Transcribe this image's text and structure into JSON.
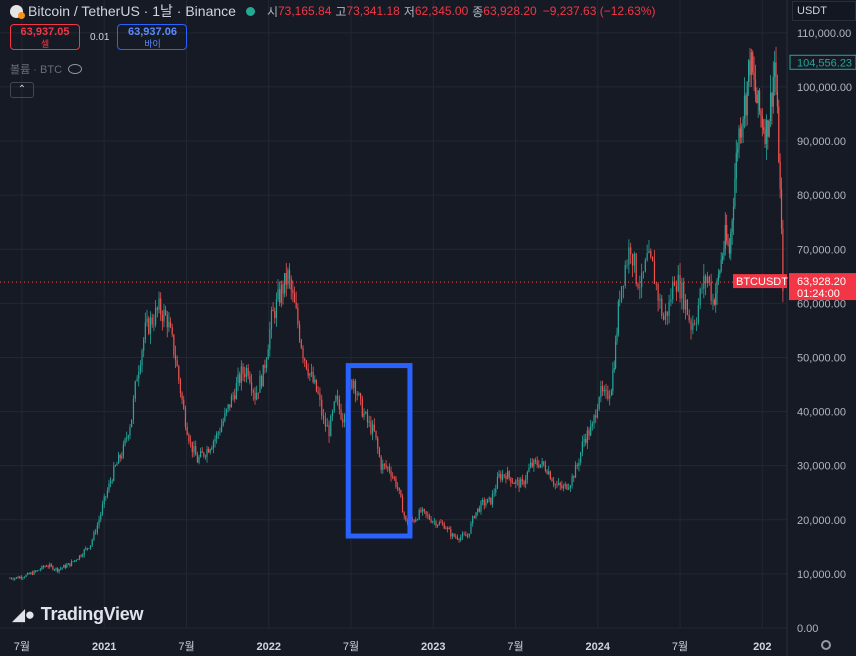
{
  "header": {
    "symbol_title": "Bitcoin / TetherUS · 1날 · Binance",
    "open_label": "시",
    "open_value": "73,165.84",
    "high_label": "고",
    "high_value": "73,341.18",
    "low_label": "저",
    "low_value": "62,345.00",
    "close_label": "종",
    "close_value": "63,928.20",
    "change_text": "−9,237.63 (−12.63%)"
  },
  "trade": {
    "sell_price": "63,937.05",
    "sell_label": "셀",
    "spread": "0.01",
    "buy_price": "63,937.06",
    "buy_label": "바이"
  },
  "volume_label": "볼륨 · BTC",
  "currency_selector": "USDT",
  "watermark": "TradingView",
  "chart_data": {
    "type": "line",
    "y_axis": {
      "ticks": [
        "0.00",
        "10,000.00",
        "20,000.00",
        "30,000.00",
        "40,000.00",
        "50,000.00",
        "60,000.00",
        "70,000.00",
        "80,000.00",
        "90,000.00",
        "100,000.00",
        "110,000.00"
      ],
      "tick_values": [
        0,
        10000,
        20000,
        30000,
        40000,
        50000,
        60000,
        70000,
        80000,
        90000,
        100000,
        110000
      ],
      "range": [
        0,
        112000
      ]
    },
    "x_axis": {
      "labels": [
        "7월",
        "2021",
        "7월",
        "2022",
        "7월",
        "2023",
        "7월",
        "2024",
        "7월",
        "202"
      ],
      "label_months": [
        6,
        12,
        18,
        24,
        30,
        36,
        42,
        48,
        54,
        60
      ],
      "range_months": [
        4.4,
        61.8
      ]
    },
    "series": {
      "x_months": [
        5,
        5.6,
        6.3,
        7,
        7.8,
        8.6,
        9.5,
        10.2,
        11,
        11.5,
        12,
        12.7,
        13.4,
        14,
        14.4,
        15,
        15.5,
        16,
        16.6,
        17.2,
        17.8,
        18.3,
        18.8,
        19.5,
        20.2,
        20.8,
        21.4,
        22,
        22.5,
        23,
        23.6,
        24.2,
        24.8,
        25.4,
        26,
        26.5,
        27,
        27.6,
        28,
        28.4,
        28.9,
        29.4,
        29.8,
        30.2,
        30.7,
        31.2,
        31.7,
        32.2,
        32.8,
        33.4,
        34,
        34.6,
        35.1,
        35.6,
        36.2,
        36.8,
        37.4,
        38,
        38.5,
        39,
        39.6,
        40.2,
        40.8,
        41.3,
        41.9,
        42.5,
        43.1,
        43.7,
        44.3,
        44.9,
        45.5,
        46,
        46.5,
        47,
        47.6,
        48.1,
        48.6,
        49,
        49.3,
        49.6,
        50,
        50.4,
        50.8,
        51.2,
        51.6,
        52,
        52.4,
        52.8,
        53.2,
        53.6,
        54,
        54.4,
        54.8,
        55.2,
        55.6,
        56,
        56.4,
        56.7,
        57,
        57.3,
        57.6,
        57.9,
        58.2,
        58.5,
        58.8,
        59.1,
        59.4,
        59.7,
        60,
        60.3,
        60.6,
        60.9,
        61.2,
        61.5
      ],
      "close": [
        9200,
        9300,
        9700,
        10400,
        11600,
        10800,
        11800,
        13300,
        15500,
        19000,
        23500,
        29000,
        33000,
        39000,
        47000,
        55000,
        57000,
        59000,
        57000,
        50000,
        40000,
        34000,
        31000,
        33000,
        35500,
        39000,
        43000,
        47000,
        48000,
        43000,
        47000,
        57000,
        61500,
        65000,
        58000,
        51000,
        47000,
        43000,
        38000,
        36500,
        42000,
        39000,
        44500,
        46000,
        41000,
        38000,
        36000,
        30000,
        29500,
        26000,
        19500,
        20000,
        21500,
        20500,
        19500,
        19000,
        17000,
        16800,
        17000,
        21000,
        23000,
        23500,
        28000,
        28500,
        27000,
        26500,
        30000,
        30500,
        29500,
        26500,
        25800,
        27000,
        30000,
        35000,
        37000,
        43500,
        42500,
        45000,
        52000,
        62000,
        67000,
        71000,
        65000,
        63500,
        68000,
        66500,
        61500,
        57000,
        59500,
        65000,
        63000,
        60000,
        56000,
        58000,
        63000,
        65000,
        60500,
        63000,
        68000,
        72000,
        69500,
        80000,
        90000,
        95000,
        98000,
        105000,
        100000,
        96000,
        94000,
        92000,
        97000,
        104556,
        88000,
        63928
      ],
      "last_price_label": "104,556.23",
      "current_price_label": "63,928.20",
      "countdown_label": "01:24:00",
      "symbol_label": "BTCUSDT",
      "current_price_value": 63928.2
    },
    "highlight_box": {
      "x_months": [
        29.8,
        34.3
      ],
      "y_values": [
        17000,
        48500
      ],
      "color": "#2962ff"
    }
  }
}
